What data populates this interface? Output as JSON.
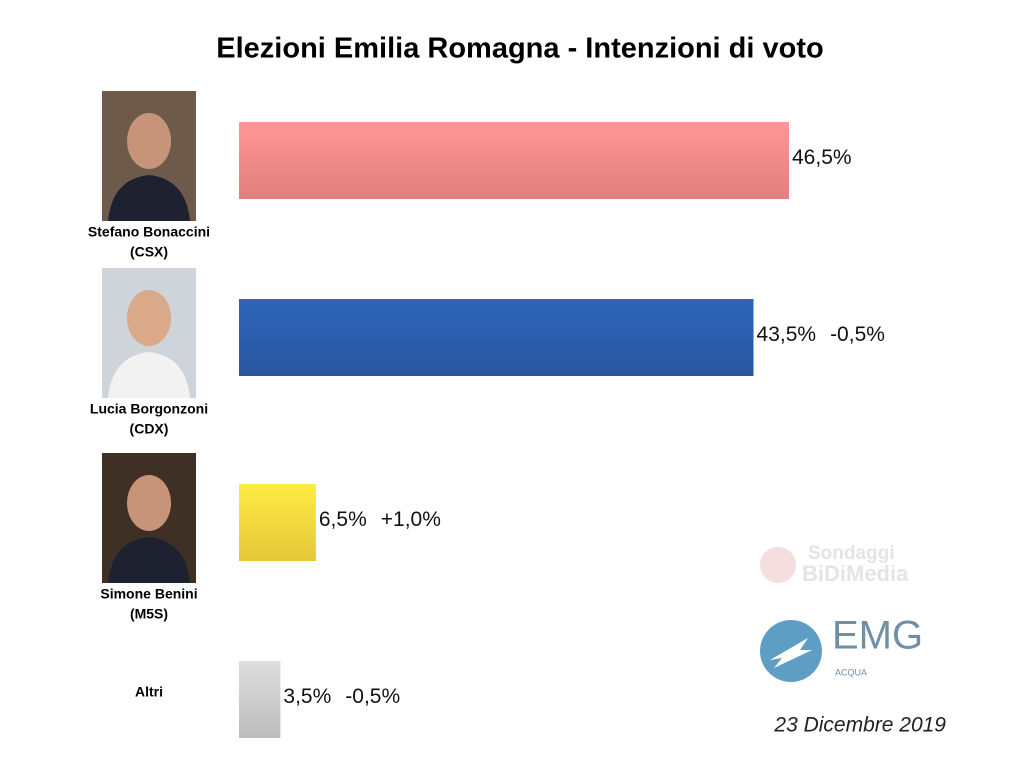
{
  "chart_data": {
    "type": "bar",
    "orientation": "horizontal",
    "title": "Elezioni Emilia Romagna - Intenzioni di voto",
    "categories": [
      "Stefano Bonaccini",
      "Lucia Borgonzoni",
      "Simone Benini",
      "Altri"
    ],
    "parties": [
      "(CSX)",
      "(CDX)",
      "(M5S)",
      null
    ],
    "values": [
      46.5,
      43.5,
      6.5,
      3.5
    ],
    "value_labels": [
      "46,5%",
      "43,5%",
      "6,5%",
      "3,5%"
    ],
    "change_labels": [
      null,
      "-0,5%",
      "+1,0%",
      "-0,5%"
    ],
    "colors": [
      "#ee8686",
      "#2a5aa6",
      "#f0d23c",
      "#c6c6c6"
    ],
    "date": "23 Dicembre 2019",
    "logos": {
      "watermark": [
        "Sondaggi",
        "BiDiMedia"
      ],
      "emg": "EMG",
      "emg_sub": "ACQUA"
    }
  }
}
